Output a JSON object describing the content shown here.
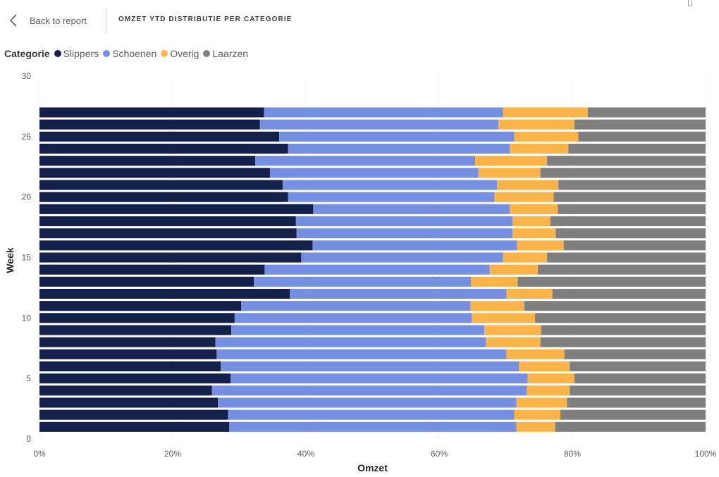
{
  "header": {
    "back_label": "Back to report",
    "title": "OMZET YTD DISTRIBUTIE PER CATEGORIE"
  },
  "legend": {
    "title": "Categorie",
    "items": [
      {
        "label": "Slippers",
        "color": "#12204a"
      },
      {
        "label": "Schoenen",
        "color": "#7590e3"
      },
      {
        "label": "Overig",
        "color": "#fcb447"
      },
      {
        "label": "Laarzen",
        "color": "#7f7f7f"
      }
    ]
  },
  "chart_data": {
    "type": "bar",
    "orientation": "horizontal",
    "stacking": "percent",
    "xlabel": "Omzet",
    "ylabel": "Week",
    "xlim": [
      0,
      100
    ],
    "ylim": [
      0,
      30
    ],
    "x_ticks": [
      "0%",
      "20%",
      "40%",
      "60%",
      "80%",
      "100%"
    ],
    "y_ticks": [
      "0",
      "5",
      "10",
      "15",
      "20",
      "25",
      "30"
    ],
    "grid": true,
    "legend_position": "top-left",
    "weeks": [
      1,
      2,
      3,
      4,
      5,
      6,
      7,
      8,
      9,
      10,
      11,
      12,
      13,
      14,
      15,
      16,
      17,
      18,
      19,
      20,
      21,
      22,
      23,
      24,
      25,
      26,
      27
    ],
    "series": [
      {
        "name": "Slippers",
        "color": "#12204a",
        "values": [
          28.5,
          28.3,
          26.8,
          25.9,
          28.7,
          27.2,
          26.6,
          26.4,
          28.8,
          29.3,
          30.3,
          37.6,
          32.2,
          33.8,
          39.3,
          41.0,
          38.6,
          38.5,
          41.1,
          37.3,
          36.5,
          34.6,
          32.4,
          37.3,
          36.0,
          33.1,
          33.7
        ]
      },
      {
        "name": "Schoenen",
        "color": "#7590e3",
        "values": [
          43.1,
          43.0,
          44.8,
          47.3,
          44.6,
          44.8,
          43.5,
          40.6,
          38.0,
          35.6,
          34.4,
          32.5,
          32.6,
          33.8,
          30.3,
          30.7,
          32.4,
          32.5,
          29.5,
          31.0,
          32.2,
          31.3,
          33.0,
          33.3,
          35.3,
          35.8,
          35.9
        ]
      },
      {
        "name": "Overig",
        "color": "#fcb447",
        "values": [
          5.8,
          6.9,
          7.6,
          6.4,
          7.0,
          7.6,
          8.7,
          8.2,
          8.5,
          9.5,
          8.1,
          6.9,
          7.0,
          7.2,
          6.6,
          7.0,
          6.5,
          5.7,
          7.2,
          8.9,
          9.2,
          9.3,
          10.8,
          8.8,
          9.6,
          11.4,
          12.7
        ]
      },
      {
        "name": "Laarzen",
        "color": "#7f7f7f",
        "values": [
          22.6,
          21.8,
          20.8,
          20.4,
          19.7,
          20.4,
          21.2,
          24.8,
          24.7,
          25.6,
          27.2,
          23.0,
          28.2,
          25.2,
          23.8,
          21.3,
          22.5,
          23.3,
          22.2,
          22.8,
          22.1,
          24.8,
          23.8,
          20.6,
          19.1,
          19.7,
          17.7
        ]
      }
    ]
  }
}
